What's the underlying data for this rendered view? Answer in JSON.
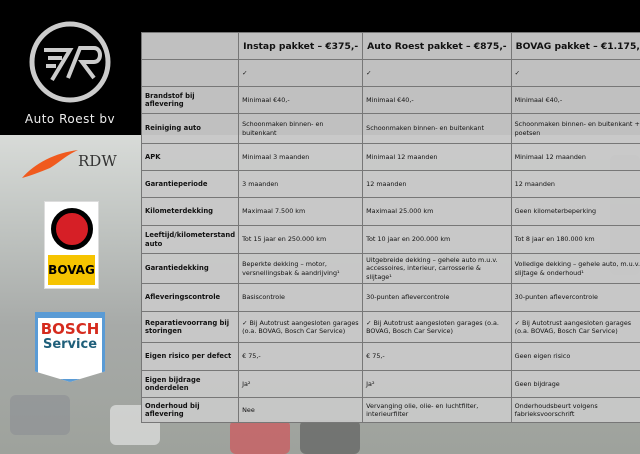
{
  "brand": {
    "name": "Auto Roest bv",
    "partners": [
      "RDW",
      "BOVAG",
      "BOSCH",
      "Service"
    ]
  },
  "table": {
    "headers": [
      "",
      "Instap pakket – €375,-",
      "Auto Roest pakket – €875,-",
      "BOVAG pakket – €1.175,-"
    ],
    "rows": [
      [
        "",
        "✓",
        "✓",
        "✓"
      ],
      [
        "Brandstof bij aflevering",
        "Minimaal €40,-",
        "Minimaal €40,-",
        "Minimaal €40,-"
      ],
      [
        "Reiniging auto",
        "Schoonmaken binnen- en buitenkant",
        "Schoonmaken binnen- en buitenkant",
        "Schoonmaken binnen- en buitenkant + poetsen"
      ],
      [
        "APK",
        "Minimaal 3 maanden",
        "Minimaal 12 maanden",
        "Minimaal 12 maanden"
      ],
      [
        "Garantieperiode",
        "3 maanden",
        "12 maanden",
        "12 maanden"
      ],
      [
        "Kilometerdekking",
        "Maximaal 7.500 km",
        "Maximaal 25.000 km",
        "Geen kilometerbeperking"
      ],
      [
        "Leeftijd/kilometerstand auto",
        "Tot 15 jaar en 250.000 km",
        "Tot 10 jaar en 200.000 km",
        "Tot 8 jaar en 180.000 km"
      ],
      [
        "Garantiedekking",
        "Beperkte dekking – motor, versnellingsbak & aandrijving¹",
        "Uitgebreide dekking – gehele auto m.u.v. accessoires, interieur, carrosserie & slijtage¹",
        "Volledige dekking – gehele auto, m.u.v. slijtage & onderhoud¹"
      ],
      [
        "Afleveringscontrole",
        "Basiscontrole",
        "30-punten aflevercontrole",
        "30-punten aflevercontrole"
      ],
      [
        "Reparatievoorrang bij storingen",
        "✓ Bij Autotrust aangesloten garages (o.a. BOVAG, Bosch Car Service)",
        "✓ Bij Autotrust aangesloten garages (o.a. BOVAG, Bosch Car Service)",
        "✓ Bij Autotrust aangesloten garages (o.a. BOVAG, Bosch Car Service)"
      ],
      [
        "Eigen risico per defect",
        "€ 75,-",
        "€ 75,-",
        "Geen eigen risico"
      ],
      [
        "Eigen bijdrage onderdelen",
        "Ja²",
        "Ja²",
        "Geen bijdrage"
      ],
      [
        "Onderhoud bij aflevering",
        "Nee",
        "Vervanging olie, olie- en luchtfilter, interieurfilter",
        "Onderhoudsbeurt volgens fabrieksvoorschrift"
      ]
    ]
  }
}
